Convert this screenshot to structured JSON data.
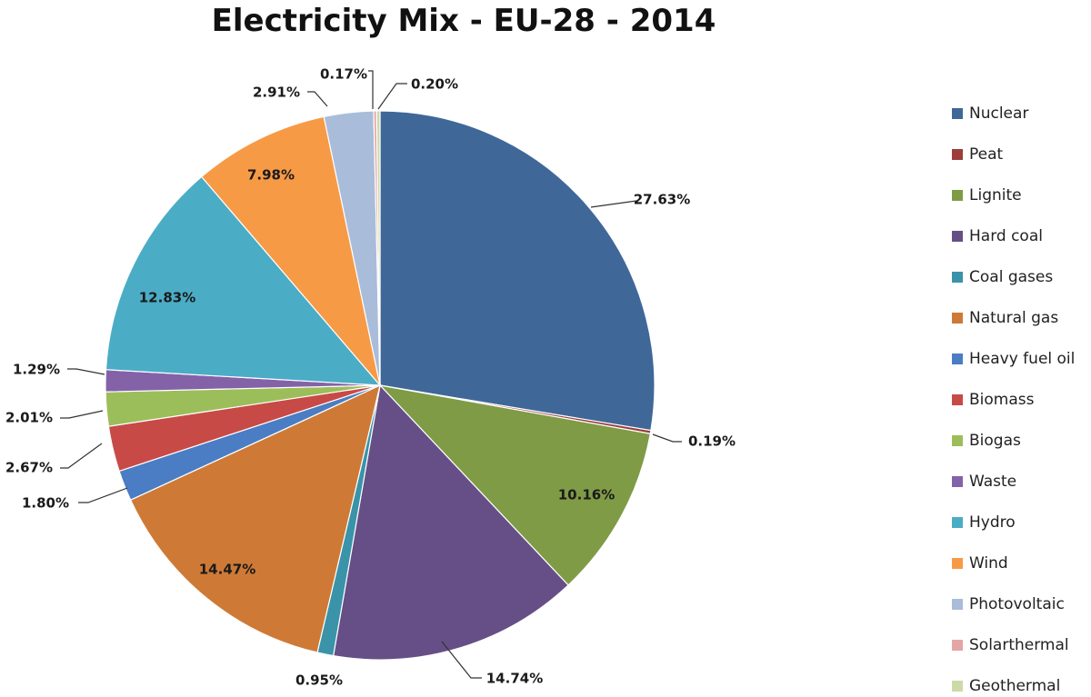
{
  "chart_data": {
    "type": "pie",
    "title": "Electricity Mix - EU-28 - 2014",
    "legend_position": "right",
    "slices": [
      {
        "label": "Nuclear",
        "value": 27.63,
        "display": "27.63%",
        "color": "#3F6899"
      },
      {
        "label": "Peat",
        "value": 0.19,
        "display": "0.19%",
        "color": "#9C3E3B"
      },
      {
        "label": "Lignite",
        "value": 10.16,
        "display": "10.16%",
        "color": "#7F9B46"
      },
      {
        "label": "Hard coal",
        "value": 14.74,
        "display": "14.74%",
        "color": "#664F86"
      },
      {
        "label": "Coal gases",
        "value": 0.95,
        "display": "0.95%",
        "color": "#3A93A9"
      },
      {
        "label": "Natural gas",
        "value": 14.47,
        "display": "14.47%",
        "color": "#CE7A36"
      },
      {
        "label": "Heavy fuel oil",
        "value": 1.8,
        "display": "1.80%",
        "color": "#4A7DC3"
      },
      {
        "label": "Biomass",
        "value": 2.67,
        "display": "2.67%",
        "color": "#C84A47"
      },
      {
        "label": "Biogas",
        "value": 2.01,
        "display": "2.01%",
        "color": "#9CBE5A"
      },
      {
        "label": "Waste",
        "value": 1.29,
        "display": "1.29%",
        "color": "#8462A8"
      },
      {
        "label": "Hydro",
        "value": 12.83,
        "display": "12.83%",
        "color": "#4BACC6"
      },
      {
        "label": "Wind",
        "value": 7.98,
        "display": "7.98%",
        "color": "#F79A46"
      },
      {
        "label": "Photovoltaic",
        "value": 2.91,
        "display": "2.91%",
        "color": "#A9BCDA"
      },
      {
        "label": "Solarthermal",
        "value": 0.17,
        "display": "0.17%",
        "color": "#E4A6A5"
      },
      {
        "label": "Geothermal",
        "value": 0.2,
        "display": "0.20%",
        "color": "#CCDAA8"
      }
    ]
  }
}
